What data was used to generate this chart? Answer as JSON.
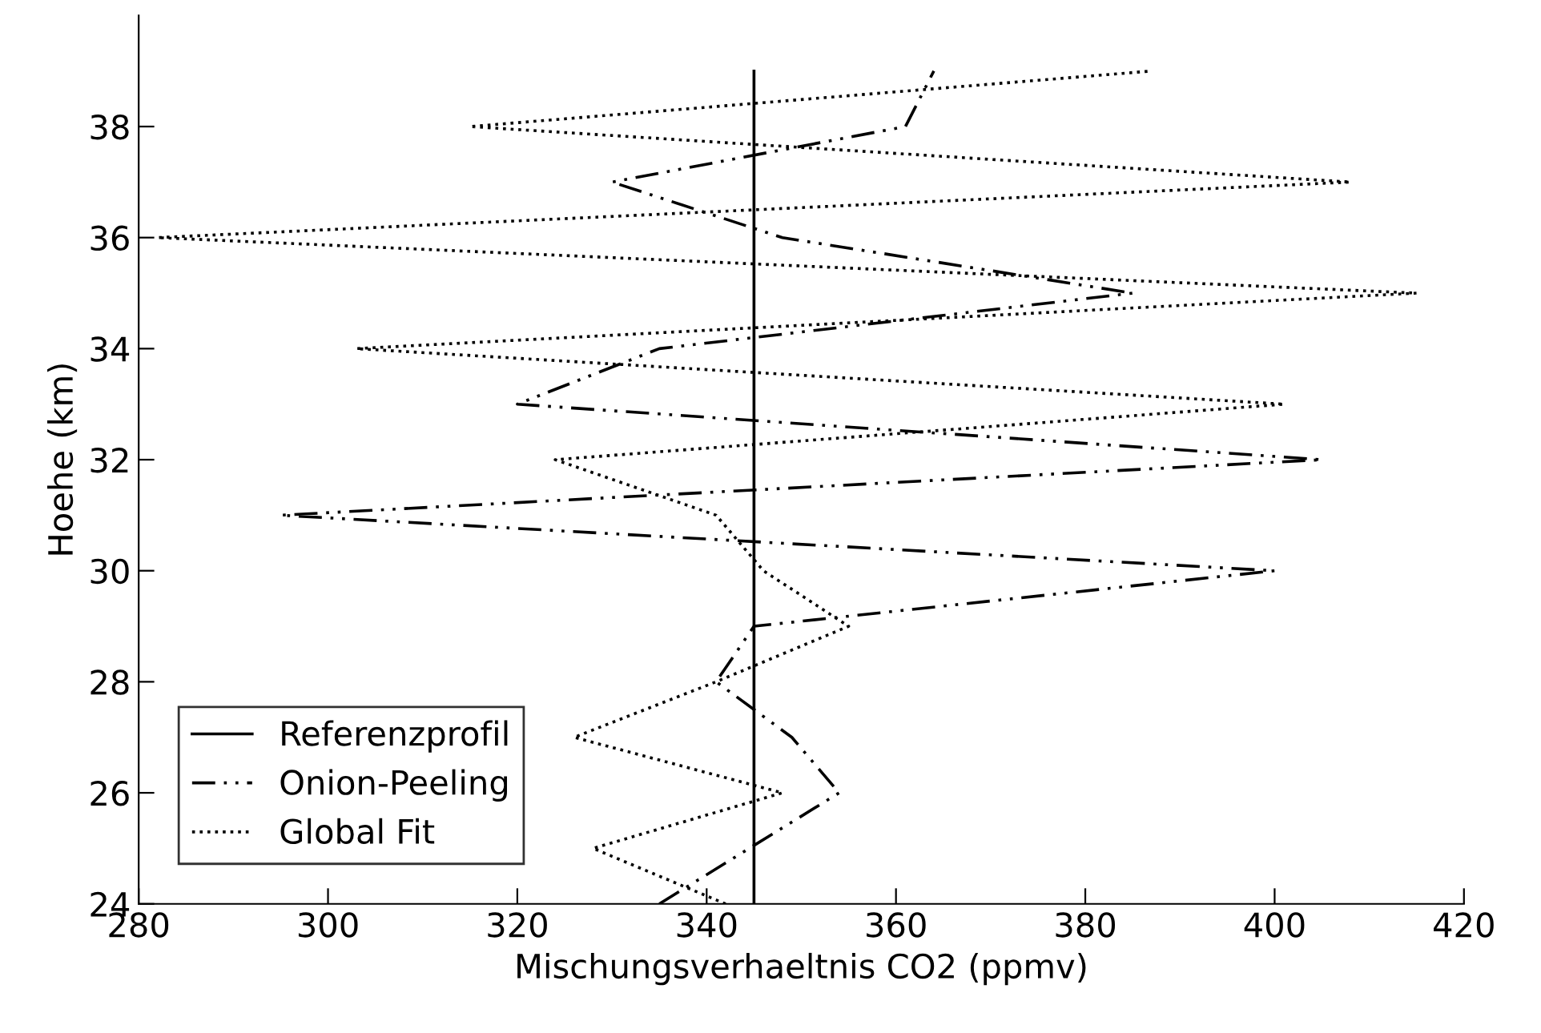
{
  "chart_data": {
    "type": "line",
    "xlabel": "Mischungsverhaeltnis CO2 (ppmv)",
    "ylabel": "Hoehe (km)",
    "xlim": [
      280,
      420
    ],
    "xticks": [
      280,
      300,
      320,
      340,
      360,
      380,
      400,
      420
    ],
    "ylim": [
      24,
      40
    ],
    "yticks": [
      24,
      26,
      28,
      30,
      32,
      34,
      36,
      38
    ],
    "grid": false,
    "legend": "bottom left",
    "marker": "none",
    "series": [
      {
        "name": "Referenzprofil",
        "color": "#000000",
        "line_style": "solid",
        "x": [
          345,
          345
        ],
        "values": [
          24,
          39
        ]
      },
      {
        "name": "Onion-Peeling",
        "color": "#000000",
        "line_style": "dashdot",
        "x": [
          335,
          354,
          349,
          341,
          345,
          400,
          295,
          405,
          320,
          335,
          385,
          348,
          330,
          361,
          364
        ],
        "values": [
          24,
          26,
          27,
          28,
          29,
          30,
          31,
          32,
          33,
          34,
          35,
          36,
          37,
          38,
          39
        ]
      },
      {
        "name": "Global Fit",
        "color": "#000000",
        "line_style": "dotted",
        "x": [
          342,
          328,
          348,
          326,
          341,
          355,
          346,
          341,
          324,
          401,
          303,
          415,
          282,
          408,
          315,
          387
        ],
        "values": [
          24,
          25,
          26,
          27,
          28,
          29,
          30,
          31,
          32,
          33,
          34,
          35,
          36,
          37,
          38,
          39
        ]
      }
    ]
  }
}
